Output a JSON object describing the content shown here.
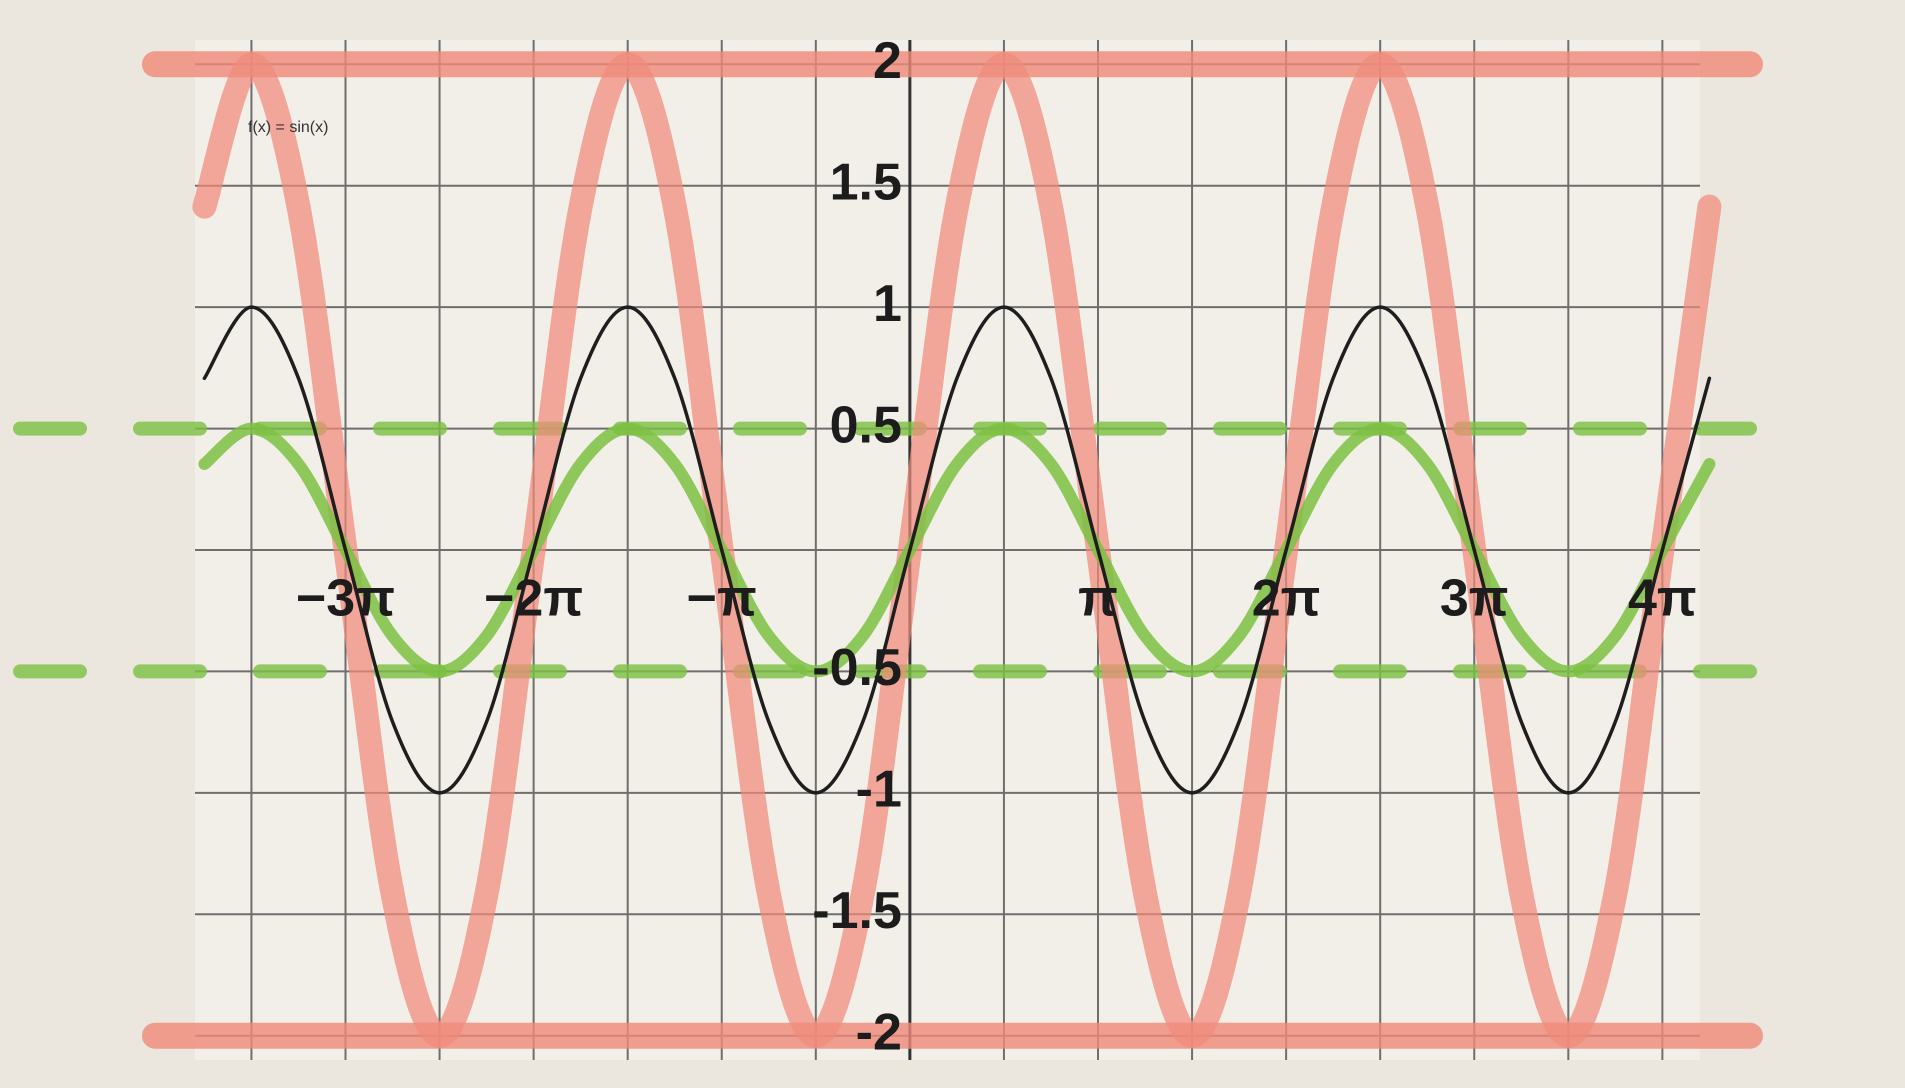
{
  "chart_data": {
    "type": "line",
    "annotation": "f(x) = sin(x)",
    "x": [
      -3.75,
      -3.5,
      -3.25,
      -3,
      -2.75,
      -2.5,
      -2.25,
      -2,
      -1.75,
      -1.5,
      -1.25,
      -1,
      -0.75,
      -0.5,
      -0.25,
      0,
      0.25,
      0.5,
      0.75,
      1,
      1.25,
      1.5,
      1.75,
      2,
      2.25,
      2.5,
      2.75,
      3,
      3.25,
      3.5,
      3.75,
      4,
      4.25
    ],
    "series": [
      {
        "color": "#f08a7a",
        "values": [
          1.414,
          2,
          1.414,
          0,
          -1.414,
          -2,
          -1.414,
          0,
          1.414,
          2,
          1.414,
          0,
          -1.414,
          -2,
          -1.414,
          0,
          1.414,
          2,
          1.414,
          0,
          -1.414,
          -2,
          -1.414,
          0,
          1.414,
          2,
          1.414,
          0,
          -1.414,
          -2,
          -1.414,
          0,
          1.414
        ]
      },
      {
        "color": "#7cc142",
        "values": [
          0.354,
          0.5,
          0.354,
          0,
          -0.354,
          -0.5,
          -0.354,
          0,
          0.354,
          0.5,
          0.354,
          0,
          -0.354,
          -0.5,
          -0.354,
          0,
          0.354,
          0.5,
          0.354,
          0,
          -0.354,
          -0.5,
          -0.354,
          0,
          0.354,
          0.5,
          0.354,
          0,
          -0.354,
          -0.5,
          -0.354,
          0,
          0.354
        ]
      },
      {
        "color": "#1e1e1e",
        "values": [
          0.707,
          1,
          0.707,
          0,
          -0.707,
          -1,
          -0.707,
          0,
          0.707,
          1,
          0.707,
          0,
          -0.707,
          -1,
          -0.707,
          0,
          0.707,
          1,
          0.707,
          0,
          -0.707,
          -1,
          -0.707,
          0,
          0.707,
          1,
          0.707,
          0,
          -0.707,
          -1,
          -0.707,
          0,
          0.707
        ]
      }
    ],
    "reference_lines": [
      {
        "value": 2,
        "color": "#f08a7a",
        "dashed": false
      },
      {
        "value": -2,
        "color": "#f08a7a",
        "dashed": false
      },
      {
        "value": 0.5,
        "color": "#7cc142",
        "dashed": true
      },
      {
        "value": -0.5,
        "color": "#7cc142",
        "dashed": true
      }
    ],
    "xlim": [
      -3.8,
      4.2
    ],
    "ylim": [
      -2.1,
      2.1
    ],
    "xticks": [
      {
        "value": -3,
        "label": "−3π"
      },
      {
        "value": -2,
        "label": "−2π"
      },
      {
        "value": -1,
        "label": "−π"
      },
      {
        "value": 1,
        "label": "π"
      },
      {
        "value": 2,
        "label": "2π"
      },
      {
        "value": 3,
        "label": "3π"
      },
      {
        "value": 4,
        "label": "4π"
      }
    ],
    "yticks": [
      -2,
      -1.5,
      -1,
      -0.5,
      0.5,
      1,
      1.5,
      2
    ],
    "xgrid": [
      -3.5,
      -3,
      -2.5,
      -2,
      -1.5,
      -1,
      -0.5,
      0,
      0.5,
      1,
      1.5,
      2,
      2.5,
      3,
      3.5,
      4
    ],
    "ygrid": [
      -2,
      -1.5,
      -1,
      -0.5,
      0,
      0.5,
      1,
      1.5,
      2
    ],
    "grid": true
  }
}
